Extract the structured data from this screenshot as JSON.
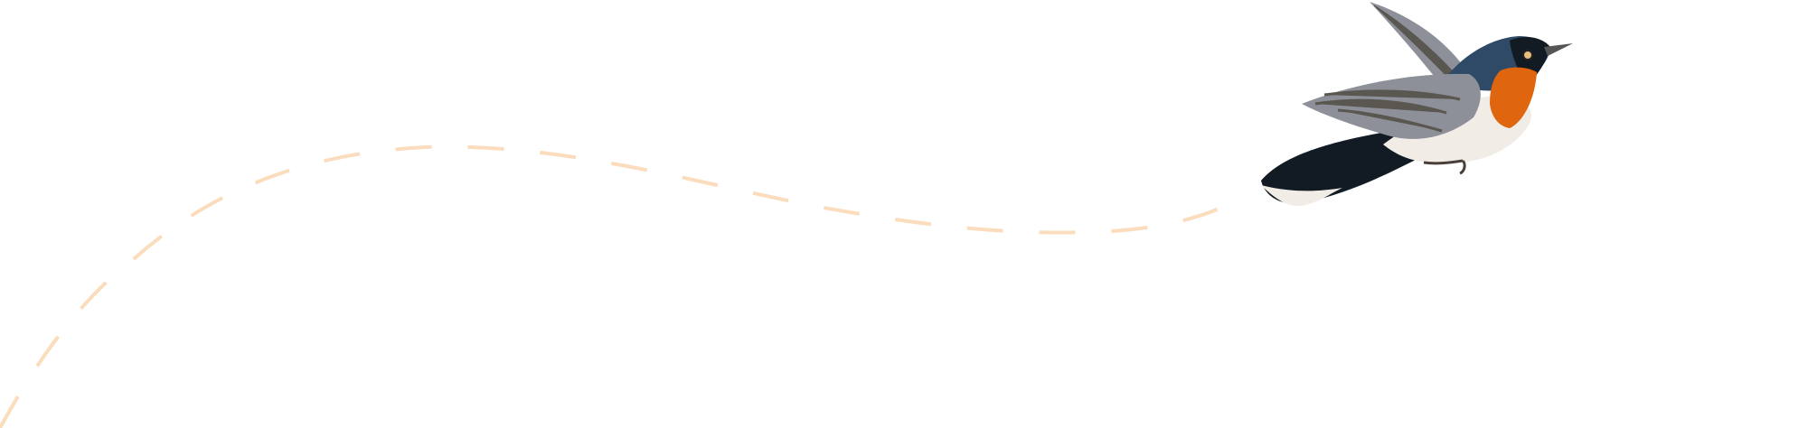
{
  "illustration": {
    "subject": "bird-in-flight",
    "colors": {
      "path_dash": "#fbdcbc",
      "bird_blue": "#2e4a66",
      "bird_dark": "#121a24",
      "bird_throat": "#e0650f",
      "bird_belly": "#f1ede6",
      "bird_wing": "#8d9099",
      "bird_wing_dark": "#5a5650"
    }
  }
}
